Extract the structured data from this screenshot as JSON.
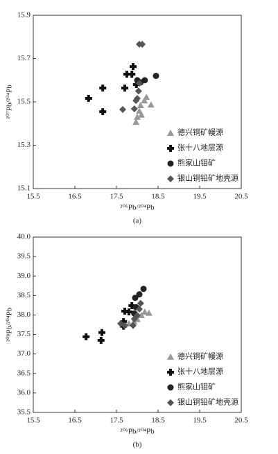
{
  "chart_data": [
    {
      "type": "scatter",
      "caption": "(a)",
      "x_label": "²⁰⁶Pb/²⁰⁴Pb",
      "y_label": "²⁰⁷Pb/²⁰⁴Pb",
      "xlim": [
        15.5,
        20.5
      ],
      "xticks": [
        15.5,
        16.5,
        17.5,
        18.5,
        19.5,
        20.5
      ],
      "ylim": [
        15.1,
        15.9
      ],
      "yticks": [
        15.1,
        15.3,
        15.5,
        15.7,
        15.9
      ],
      "legend": "lower right",
      "series": [
        {
          "name": "德兴铜矿幔源",
          "marker": "triangle",
          "color": "#999999",
          "x": [
            17.97,
            18.05,
            18.08,
            18.17,
            18.22,
            18.33,
            18.1,
            18.0
          ],
          "values": [
            15.407,
            15.458,
            15.484,
            15.506,
            15.522,
            15.487,
            15.44,
            15.43
          ]
        },
        {
          "name": "张十八地层源",
          "marker": "plus",
          "color": "#111111",
          "x": [
            16.83,
            17.17,
            17.17,
            17.7,
            17.75,
            17.87,
            17.9,
            17.98
          ],
          "values": [
            15.516,
            15.564,
            15.455,
            15.564,
            15.628,
            15.628,
            15.663,
            15.58
          ]
        },
        {
          "name": "熊家山钼矿",
          "marker": "circle",
          "color": "#222222",
          "x": [
            18.0,
            18.18,
            18.45,
            18.08
          ],
          "values": [
            15.6,
            15.6,
            15.62,
            15.59
          ]
        },
        {
          "name": "银山铜铅矿地壳源",
          "marker": "diamond",
          "color": "#555555",
          "x": [
            18.05,
            18.12,
            17.65,
            17.93,
            18.0,
            18.03,
            18.05,
            17.97
          ],
          "values": [
            15.766,
            15.766,
            15.465,
            15.468,
            15.516,
            15.55,
            15.586,
            15.506
          ]
        }
      ]
    },
    {
      "type": "scatter",
      "caption": "(b)",
      "x_label": "²⁰⁶Pb/²⁰⁴Pb",
      "y_label": "²⁰⁸Pb/²⁰⁴Pb",
      "xlim": [
        15.5,
        20.5
      ],
      "xticks": [
        15.5,
        16.5,
        17.5,
        18.5,
        19.5,
        20.5
      ],
      "ylim": [
        35.5,
        40.0
      ],
      "yticks": [
        35.5,
        {
          "value": 36,
          "label": "36.0"
        },
        36.5,
        {
          "value": 37,
          "label": "37.0"
        },
        37.5,
        {
          "value": 38,
          "label": "38.0"
        },
        38.5,
        {
          "value": 39,
          "label": "39.0"
        },
        39.5,
        {
          "value": 40,
          "label": "40.0"
        }
      ],
      "legend": "lower right",
      "series": [
        {
          "name": "德兴铜矿幔源",
          "marker": "triangle",
          "color": "#999999",
          "x": [
            17.8,
            18.0,
            18.1,
            18.18,
            18.28,
            17.92
          ],
          "values": [
            37.78,
            37.89,
            37.99,
            38.08,
            38.05,
            37.83
          ]
        },
        {
          "name": "张十八地层源",
          "marker": "plus",
          "color": "#111111",
          "x": [
            16.77,
            17.15,
            17.13,
            17.67,
            17.7,
            17.8,
            17.87,
            17.67
          ],
          "values": [
            37.44,
            37.55,
            37.35,
            37.83,
            38.1,
            38.08,
            38.24,
            37.71
          ]
        },
        {
          "name": "熊家山钼矿",
          "marker": "circle",
          "color": "#222222",
          "x": [
            17.95,
            18.05,
            18.15,
            17.93,
            17.97
          ],
          "values": [
            38.44,
            38.53,
            38.67,
            38.04,
            38.2
          ]
        },
        {
          "name": "银山铜铅矿地壳源",
          "marker": "diamond",
          "color": "#555555",
          "x": [
            17.6,
            17.7,
            17.9,
            17.93,
            18.0,
            18.05,
            18.08
          ],
          "values": [
            37.78,
            37.73,
            37.73,
            37.9,
            37.99,
            38.15,
            38.3
          ]
        }
      ]
    }
  ]
}
